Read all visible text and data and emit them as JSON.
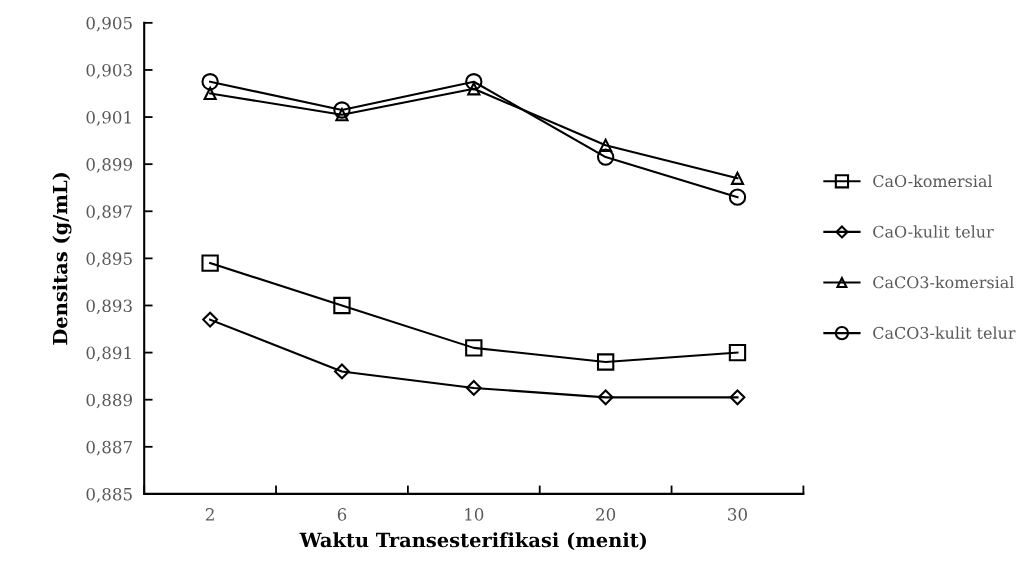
{
  "chart_data": {
    "type": "line",
    "xlabel": "Waktu Transesterifikasi (menit)",
    "ylabel": "Densitas (g/mL)",
    "categories": [
      "2",
      "6",
      "10",
      "20",
      "30"
    ],
    "series": [
      {
        "name": "CaO-komersial",
        "color": "#000000",
        "marker": "square",
        "values": [
          0.8948,
          0.893,
          0.8912,
          0.8906,
          0.891
        ]
      },
      {
        "name": "CaO-kulit telur",
        "color": "#000000",
        "marker": "diamond",
        "values": [
          0.8924,
          0.8902,
          0.8895,
          0.8891,
          0.8891
        ]
      },
      {
        "name": "CaCO3-komersial",
        "color": "#000000",
        "marker": "triangle",
        "values": [
          0.902,
          0.9011,
          0.9022,
          0.8998,
          0.8984
        ]
      },
      {
        "name": "CaCO3-kulit telur",
        "color": "#000000",
        "marker": "circle",
        "values": [
          0.9025,
          0.9013,
          0.9025,
          0.8993,
          0.8976
        ]
      }
    ],
    "ylim": [
      0.885,
      0.905
    ],
    "yticks": [
      {
        "value": 0.885,
        "label": "0,885"
      },
      {
        "value": 0.887,
        "label": "0,887"
      },
      {
        "value": 0.889,
        "label": "0,889"
      },
      {
        "value": 0.891,
        "label": "0,891"
      },
      {
        "value": 0.893,
        "label": "0,893"
      },
      {
        "value": 0.895,
        "label": "0,895"
      },
      {
        "value": 0.897,
        "label": "0,897"
      },
      {
        "value": 0.899,
        "label": "0,899"
      },
      {
        "value": 0.901,
        "label": "0,901"
      },
      {
        "value": 0.903,
        "label": "0,903"
      },
      {
        "value": 0.905,
        "label": "0,905"
      }
    ],
    "grid": false,
    "legend": "right",
    "line_style": "solid"
  }
}
